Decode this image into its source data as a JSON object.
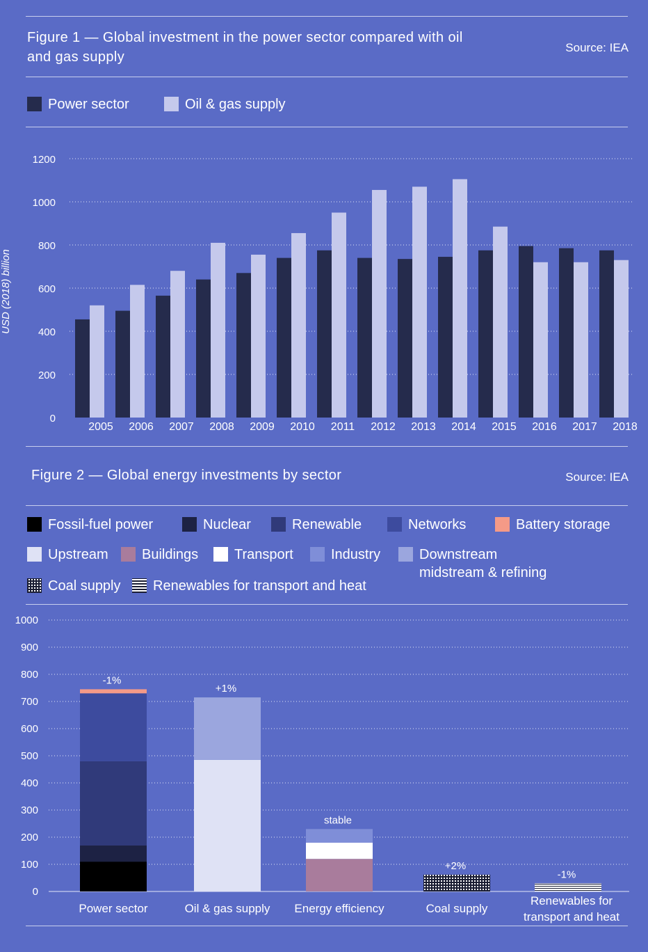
{
  "figure1": {
    "title": "Figure 1 — Global investment in the power sector compared with oil and gas supply",
    "source": "Source: IEA",
    "legend": [
      {
        "label": "Power sector",
        "color": "#252b4c"
      },
      {
        "label": "Oil & gas supply",
        "color": "#c5c9ec"
      }
    ]
  },
  "figure2": {
    "title": "Figure 2 — Global energy investments by sector",
    "source": "Source: IEA",
    "legend": [
      {
        "label": "Fossil-fuel power",
        "color": "#000000"
      },
      {
        "label": "Nuclear",
        "color": "#1d2244"
      },
      {
        "label": "Renewable",
        "color": "#303a7a"
      },
      {
        "label": "Networks",
        "color": "#3d4b9e"
      },
      {
        "label": "Battery storage",
        "color": "#f59a87"
      },
      {
        "label": "Upstream",
        "color": "#dfe2f5"
      },
      {
        "label": "Buildings",
        "color": "#a97c9c"
      },
      {
        "label": "Transport",
        "color": "#ffffff"
      },
      {
        "label": "Industry",
        "color": "#7f8ed8"
      },
      {
        "label": "Downstream midstream & refining",
        "color": "#9ba6de"
      },
      {
        "label": "Coal supply",
        "color": "#1a1d33"
      },
      {
        "label": "Renewables for transport and heat",
        "color": "#ffffff"
      }
    ]
  },
  "chart_data": [
    {
      "type": "bar",
      "title": "Figure 1 — Global investment in the power sector compared with oil and gas supply",
      "ylabel": "USD (2018) billion",
      "xlabel": "",
      "ylim": [
        0,
        1200
      ],
      "yticks": [
        0,
        200,
        400,
        600,
        800,
        1000,
        1200
      ],
      "grid": true,
      "categories": [
        "2005",
        "2006",
        "2007",
        "2008",
        "2009",
        "2010",
        "2011",
        "2012",
        "2013",
        "2014",
        "2015",
        "2016",
        "2017",
        "2018"
      ],
      "series": [
        {
          "name": "Power sector",
          "color": "#252b4c",
          "values": [
            455,
            495,
            565,
            640,
            670,
            740,
            775,
            740,
            735,
            745,
            775,
            795,
            785,
            775
          ]
        },
        {
          "name": "Oil & gas supply",
          "color": "#c5c9ec",
          "values": [
            520,
            615,
            680,
            810,
            755,
            855,
            950,
            1055,
            1070,
            1105,
            885,
            720,
            720,
            730
          ]
        }
      ]
    },
    {
      "type": "bar",
      "stacked": true,
      "title": "Figure 2 — Global energy investments by sector",
      "ylim": [
        0,
        1000
      ],
      "yticks": [
        0,
        100,
        200,
        300,
        400,
        500,
        600,
        700,
        800,
        900,
        1000
      ],
      "grid": true,
      "categories": [
        "Power sector",
        "Oil & gas supply",
        "Energy efficiency",
        "Coal supply",
        "Renewables for transport and heat"
      ],
      "annotations": [
        "-1%",
        "+1%",
        "stable",
        "+2%",
        "-1%"
      ],
      "stacks": [
        [
          {
            "name": "Fossil-fuel power",
            "value": 110,
            "color": "#000000",
            "pattern": "none"
          },
          {
            "name": "Nuclear",
            "value": 60,
            "color": "#1d2244",
            "pattern": "none"
          },
          {
            "name": "Renewable",
            "value": 310,
            "color": "#303a7a",
            "pattern": "none"
          },
          {
            "name": "Networks",
            "value": 250,
            "color": "#3d4b9e",
            "pattern": "none"
          },
          {
            "name": "Battery storage",
            "value": 15,
            "color": "#f59a87",
            "pattern": "none"
          }
        ],
        [
          {
            "name": "Upstream",
            "value": 485,
            "color": "#dfe2f5",
            "pattern": "none"
          },
          {
            "name": "Downstream midstream & refining",
            "value": 230,
            "color": "#9ba6de",
            "pattern": "none"
          }
        ],
        [
          {
            "name": "Buildings",
            "value": 120,
            "color": "#a97c9c",
            "pattern": "none"
          },
          {
            "name": "Transport",
            "value": 60,
            "color": "#ffffff",
            "pattern": "none"
          },
          {
            "name": "Industry",
            "value": 50,
            "color": "#7f8ed8",
            "pattern": "none"
          }
        ],
        [
          {
            "name": "Coal supply",
            "value": 62,
            "color": "#1a1d33",
            "pattern": "grid"
          }
        ],
        [
          {
            "name": "Renewables for transport and heat",
            "value": 30,
            "color": "#ffffff",
            "pattern": "hlines"
          }
        ]
      ]
    }
  ]
}
